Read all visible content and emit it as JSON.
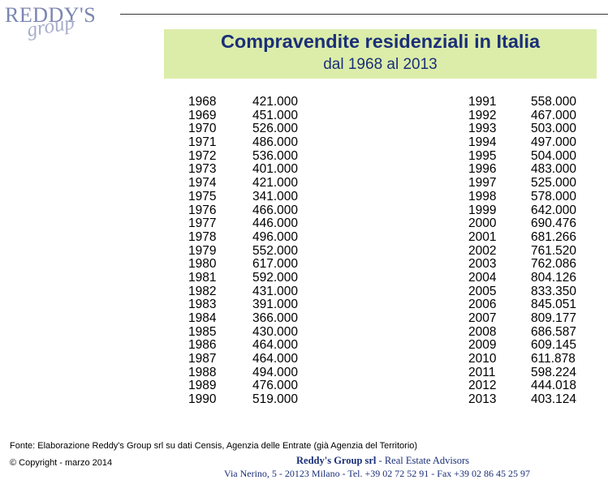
{
  "logo": {
    "line1": "REDDY'S",
    "line2": "group"
  },
  "title": "Compravendite residenziali in Italia",
  "subtitle": "dal 1968 al 2013",
  "left_rows": [
    {
      "year": "1968",
      "value": "421.000"
    },
    {
      "year": "1969",
      "value": "451.000"
    },
    {
      "year": "1970",
      "value": "526.000"
    },
    {
      "year": "1971",
      "value": "486.000"
    },
    {
      "year": "1972",
      "value": "536.000"
    },
    {
      "year": "1973",
      "value": "401.000"
    },
    {
      "year": "1974",
      "value": "421.000"
    },
    {
      "year": "1975",
      "value": "341.000"
    },
    {
      "year": "1976",
      "value": "466.000"
    },
    {
      "year": "1977",
      "value": "446.000"
    },
    {
      "year": "1978",
      "value": "496.000"
    },
    {
      "year": "1979",
      "value": "552.000"
    },
    {
      "year": "1980",
      "value": "617.000"
    },
    {
      "year": "1981",
      "value": "592.000"
    },
    {
      "year": "1982",
      "value": "431.000"
    },
    {
      "year": "1983",
      "value": "391.000"
    },
    {
      "year": "1984",
      "value": "366.000"
    },
    {
      "year": "1985",
      "value": "430.000"
    },
    {
      "year": "1986",
      "value": "464.000"
    },
    {
      "year": "1987",
      "value": "464.000"
    },
    {
      "year": "1988",
      "value": "494.000"
    },
    {
      "year": "1989",
      "value": "476.000"
    },
    {
      "year": "1990",
      "value": "519.000"
    }
  ],
  "right_rows": [
    {
      "year": "1991",
      "value": "558.000"
    },
    {
      "year": "1992",
      "value": "467.000"
    },
    {
      "year": "1993",
      "value": "503.000"
    },
    {
      "year": "1994",
      "value": "497.000"
    },
    {
      "year": "1995",
      "value": "504.000"
    },
    {
      "year": "1996",
      "value": "483.000"
    },
    {
      "year": "1997",
      "value": "525.000"
    },
    {
      "year": "1998",
      "value": "578.000"
    },
    {
      "year": "1999",
      "value": "642.000"
    },
    {
      "year": "2000",
      "value": "690.476"
    },
    {
      "year": "2001",
      "value": "681.266"
    },
    {
      "year": "2002",
      "value": "761.520"
    },
    {
      "year": "2003",
      "value": "762.086"
    },
    {
      "year": "2004",
      "value": "804.126"
    },
    {
      "year": "2005",
      "value": "833.350"
    },
    {
      "year": "2006",
      "value": "845.051"
    },
    {
      "year": "2007",
      "value": "809.177"
    },
    {
      "year": "2008",
      "value": "686.587"
    },
    {
      "year": "2009",
      "value": "609.145"
    },
    {
      "year": "2010",
      "value": "611.878"
    },
    {
      "year": "2011",
      "value": "598.224"
    },
    {
      "year": "2012",
      "value": "444.018"
    },
    {
      "year": "2013",
      "value": "403.124"
    }
  ],
  "footer": {
    "source": "Fonte: Elaborazione Reddy's Group srl su dati Censis, Agenzia delle Entrate (già Agenzia del Territorio)",
    "copyright": "© Copyright - marzo 2014",
    "company_name": "Reddy's Group srl",
    "company_tagline": " - Real Estate Advisors",
    "address": "Via Nerino, 5 - 20123 Milano - Tel. +39 02 72 52 91 - Fax +39 02 86 45 25 97"
  },
  "colors": {
    "title_bg": "#dcedaa",
    "title_text": "#1a2f78",
    "logo": "#7b86b0"
  }
}
